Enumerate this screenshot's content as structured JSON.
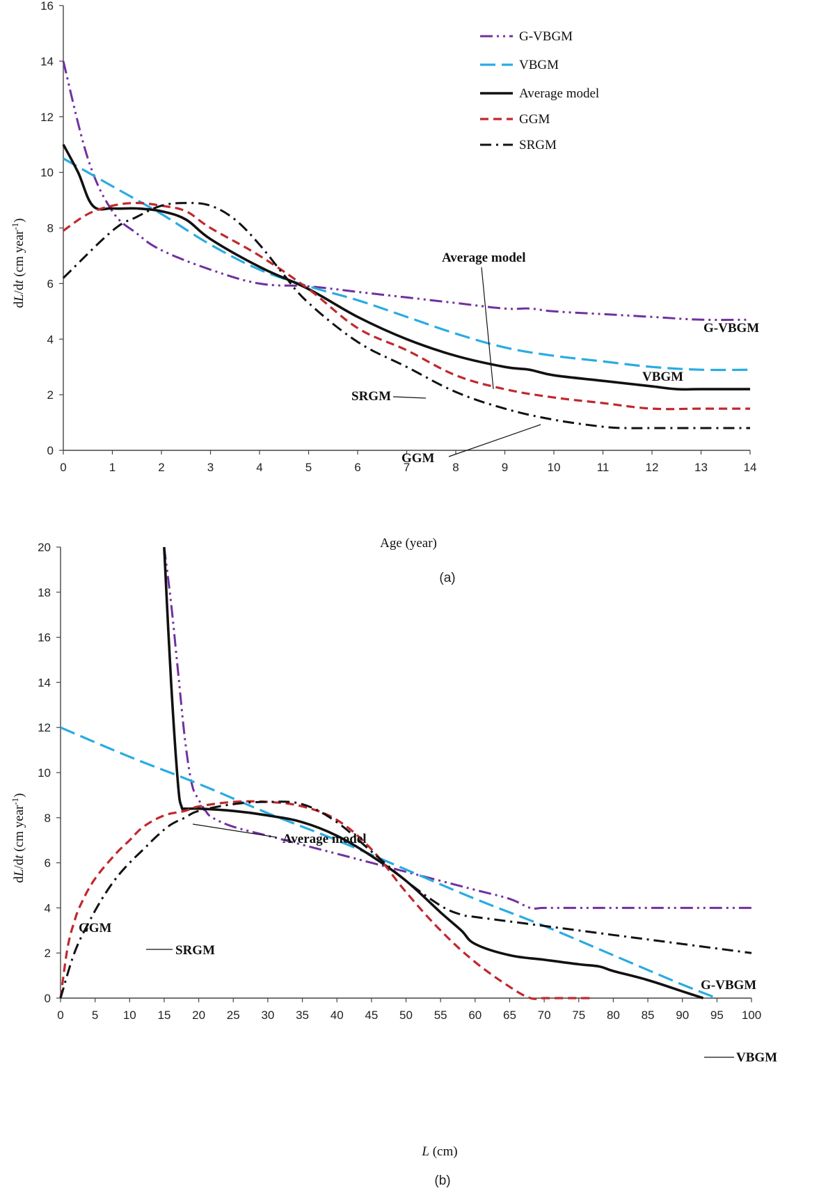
{
  "chart_data": [
    {
      "type": "line",
      "panel_label": "(a)",
      "xlabel": "Age (year)",
      "ylabel": "dL/dt (cm year-1)",
      "xlim": [
        0,
        14
      ],
      "ylim": [
        0,
        16
      ],
      "xticks": [
        0,
        1,
        2,
        3,
        4,
        5,
        6,
        7,
        8,
        9,
        10,
        11,
        12,
        13,
        14
      ],
      "yticks": [
        0,
        2,
        4,
        6,
        8,
        10,
        12,
        14,
        16
      ],
      "legend": {
        "placement": "top-right",
        "entries": [
          "G-VBGM",
          "VBGM",
          "Average model",
          "GGM",
          "SRGM"
        ]
      },
      "series": [
        {
          "name": "G-VBGM",
          "color": "#7030a0",
          "style": "dashdotdot",
          "x": [
            0,
            0.5,
            1,
            1.5,
            2,
            3,
            4,
            5,
            6,
            7,
            8,
            9,
            9.5,
            10,
            11,
            12,
            13,
            14
          ],
          "y": [
            14,
            10.5,
            8.6,
            7.8,
            7.2,
            6.5,
            6.0,
            5.9,
            5.7,
            5.5,
            5.3,
            5.1,
            5.1,
            5.0,
            4.9,
            4.8,
            4.7,
            4.7
          ]
        },
        {
          "name": "VBGM",
          "color": "#29abe2",
          "style": "longdash",
          "x": [
            0,
            1,
            2,
            3,
            4,
            5,
            6,
            7,
            8,
            9,
            10,
            11,
            12,
            13,
            14
          ],
          "y": [
            10.5,
            9.5,
            8.5,
            7.4,
            6.5,
            5.9,
            5.4,
            4.8,
            4.2,
            3.7,
            3.4,
            3.2,
            3.0,
            2.9,
            2.9
          ]
        },
        {
          "name": "Average model",
          "color": "#111111",
          "style": "solid",
          "x": [
            0,
            0.3,
            0.6,
            1,
            1.5,
            2,
            2.5,
            3,
            4,
            5,
            6,
            7,
            8,
            9,
            9.5,
            10,
            11,
            12,
            12.5,
            13,
            14
          ],
          "y": [
            11.0,
            10.0,
            8.8,
            8.7,
            8.7,
            8.6,
            8.3,
            7.6,
            6.6,
            5.8,
            4.8,
            4.0,
            3.4,
            3.0,
            2.9,
            2.7,
            2.5,
            2.3,
            2.2,
            2.2,
            2.2
          ]
        },
        {
          "name": "GGM",
          "color": "#c0282d",
          "style": "dash",
          "x": [
            0,
            0.5,
            1,
            1.5,
            2,
            2.5,
            3,
            4,
            5,
            6,
            7,
            8,
            9,
            10,
            11,
            12,
            13,
            14
          ],
          "y": [
            7.9,
            8.5,
            8.8,
            8.9,
            8.8,
            8.6,
            8.0,
            7.0,
            5.8,
            4.4,
            3.6,
            2.7,
            2.2,
            1.9,
            1.7,
            1.5,
            1.5,
            1.5
          ]
        },
        {
          "name": "SRGM",
          "color": "#111111",
          "style": "dashdot",
          "x": [
            0,
            1,
            1.5,
            2,
            2.5,
            3,
            3.5,
            4,
            4.5,
            5,
            6,
            7,
            8,
            9,
            10,
            11,
            11.5,
            12,
            13,
            14
          ],
          "y": [
            6.2,
            7.9,
            8.4,
            8.8,
            8.9,
            8.8,
            8.3,
            7.4,
            6.3,
            5.3,
            3.9,
            3.0,
            2.1,
            1.5,
            1.1,
            0.85,
            0.8,
            0.8,
            0.8,
            0.8
          ]
        }
      ],
      "annotations": [
        {
          "text": "Average model",
          "x": 8.0,
          "y": 3.4
        },
        {
          "text": "G-VBGM"
        },
        {
          "text": "VBGM"
        },
        {
          "text": "SRGM",
          "x": 6.2,
          "y": 3.2
        },
        {
          "text": "GGM",
          "x": 8.8,
          "y": 2.2
        }
      ]
    },
    {
      "type": "line",
      "panel_label": "(b)",
      "xlabel": "L (cm)",
      "ylabel": "dL/dt (cm year-1)",
      "xlim": [
        0,
        100
      ],
      "ylim": [
        0,
        20
      ],
      "xticks": [
        0,
        5,
        10,
        15,
        20,
        25,
        30,
        35,
        40,
        45,
        50,
        55,
        60,
        65,
        70,
        75,
        80,
        85,
        90,
        95,
        100
      ],
      "yticks": [
        0,
        2,
        4,
        6,
        8,
        10,
        12,
        14,
        16,
        18,
        20
      ],
      "series": [
        {
          "name": "G-VBGM",
          "color": "#7030a0",
          "style": "dashdotdot",
          "x": [
            15,
            16,
            17,
            18,
            19,
            20,
            21,
            22,
            25,
            30,
            35,
            40,
            45,
            50,
            55,
            60,
            65,
            68,
            70,
            75,
            80,
            85,
            90,
            95,
            100
          ],
          "y": [
            20,
            17.5,
            14.5,
            11.5,
            9.5,
            8.8,
            8.3,
            8.0,
            7.6,
            7.2,
            6.8,
            6.4,
            6.0,
            5.6,
            5.2,
            4.8,
            4.4,
            4.0,
            4.0,
            4.0,
            4.0,
            4.0,
            4.0,
            4.0,
            4.0
          ]
        },
        {
          "name": "VBGM",
          "color": "#29abe2",
          "style": "longdash",
          "x": [
            0,
            10,
            20,
            30,
            40,
            50,
            60,
            70,
            80,
            90,
            95
          ],
          "y": [
            12,
            10.7,
            9.5,
            8.2,
            7.0,
            5.7,
            4.4,
            3.2,
            1.9,
            0.6,
            0
          ]
        },
        {
          "name": "Average model",
          "color": "#111111",
          "style": "solid",
          "x": [
            15,
            16,
            17,
            17.5,
            18,
            20,
            25,
            30,
            35,
            40,
            45,
            50,
            55,
            58,
            60,
            65,
            70,
            75,
            78,
            80,
            85,
            90,
            93
          ],
          "y": [
            20,
            14,
            9.5,
            8.5,
            8.4,
            8.4,
            8.3,
            8.1,
            7.8,
            7.2,
            6.3,
            5.2,
            3.8,
            3.0,
            2.4,
            1.9,
            1.7,
            1.5,
            1.4,
            1.2,
            0.8,
            0.3,
            0.0
          ]
        },
        {
          "name": "GGM",
          "color": "#c0282d",
          "style": "dash",
          "x": [
            0,
            1,
            2,
            3,
            5,
            8,
            10,
            12,
            15,
            18,
            20,
            25,
            30,
            35,
            40,
            45,
            50,
            55,
            60,
            65,
            68,
            70,
            75,
            77
          ],
          "y": [
            0,
            2.2,
            3.4,
            4.2,
            5.3,
            6.4,
            7.0,
            7.6,
            8.1,
            8.3,
            8.5,
            8.7,
            8.7,
            8.5,
            7.9,
            6.6,
            4.7,
            3.0,
            1.6,
            0.5,
            0,
            0,
            0,
            0
          ]
        },
        {
          "name": "SRGM",
          "color": "#111111",
          "style": "dashdot",
          "x": [
            0,
            2,
            4,
            6,
            8,
            10,
            12,
            14,
            16,
            18,
            20,
            25,
            30,
            35,
            40,
            45,
            50,
            55,
            58,
            60,
            70,
            80,
            90,
            100
          ],
          "y": [
            0,
            2.0,
            3.3,
            4.4,
            5.3,
            6.0,
            6.6,
            7.2,
            7.7,
            8.0,
            8.3,
            8.6,
            8.7,
            8.6,
            7.8,
            6.5,
            5.2,
            4.1,
            3.7,
            3.6,
            3.2,
            2.8,
            2.4,
            2.0
          ]
        }
      ],
      "annotations": [
        {
          "text": "Average model",
          "x": 17.3,
          "y": 10.0
        },
        {
          "text": "GGM"
        },
        {
          "text": "SRGM",
          "x": 11,
          "y": 5.8
        },
        {
          "text": "G-VBGM"
        },
        {
          "text": "VBGM",
          "x": 85,
          "y": 1.3
        }
      ]
    }
  ]
}
